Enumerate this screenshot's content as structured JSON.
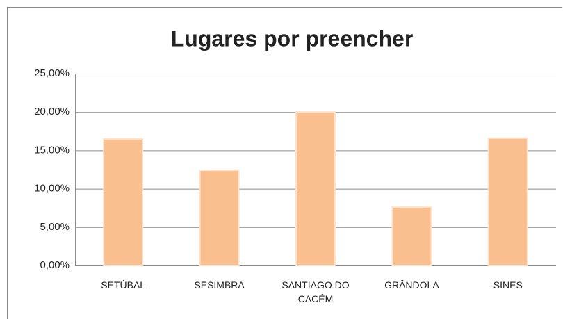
{
  "chart_data": {
    "type": "bar",
    "title": "Lugares por preencher",
    "categories": [
      "SETÚBAL",
      "SESIMBRA",
      "SANTIAGO DO CACÉM",
      "GRÂNDOLA",
      "SINES"
    ],
    "values": [
      16.5,
      12.4,
      20.0,
      7.6,
      16.6
    ],
    "color": "#f9bf8f",
    "ylim": [
      0,
      25
    ],
    "yticks": [
      {
        "value": 0,
        "label": "0,00%"
      },
      {
        "value": 5,
        "label": "5,00%"
      },
      {
        "value": 10,
        "label": "10,00%"
      },
      {
        "value": 15,
        "label": "15,00%"
      },
      {
        "value": 20,
        "label": "20,00%"
      },
      {
        "value": 25,
        "label": "25,00%"
      }
    ],
    "grid": true
  }
}
